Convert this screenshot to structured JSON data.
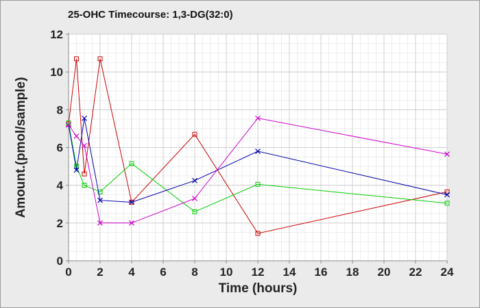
{
  "chart_data": {
    "type": "line",
    "title": "25-OHC Timecourse: 1,3-DG(32:0)",
    "xlabel": "Time (hours)",
    "ylabel": "Amount.(pmol/sample)",
    "xlim": [
      0,
      24
    ],
    "ylim": [
      0,
      12
    ],
    "xticks": [
      0,
      2,
      4,
      6,
      8,
      10,
      12,
      14,
      16,
      18,
      20,
      22,
      24
    ],
    "yticks": [
      0,
      2,
      4,
      6,
      8,
      10,
      12
    ],
    "grid": true,
    "legend": "none",
    "series": [
      {
        "color": "#cc0000",
        "marker": "square",
        "x": [
          0,
          0.5,
          1,
          2,
          4,
          8,
          12,
          24
        ],
        "y": [
          7.25,
          10.7,
          4.6,
          10.7,
          3.1,
          6.7,
          1.45,
          3.65
        ]
      },
      {
        "color": "#00cc00",
        "marker": "square",
        "x": [
          0,
          0.5,
          1,
          2,
          4,
          8,
          12,
          24
        ],
        "y": [
          7.3,
          5.0,
          4.0,
          3.65,
          5.15,
          2.6,
          4.05,
          3.05
        ]
      },
      {
        "color": "#0000aa",
        "marker": "x",
        "x": [
          0,
          0.5,
          1,
          2,
          4,
          8,
          12,
          24
        ],
        "y": [
          7.2,
          4.8,
          7.55,
          3.2,
          3.1,
          4.25,
          5.8,
          3.5
        ]
      },
      {
        "color": "#cc00cc",
        "marker": "x",
        "x": [
          0,
          0.5,
          1,
          2,
          4,
          8,
          12,
          24
        ],
        "y": [
          7.2,
          6.6,
          6.1,
          2.0,
          2.0,
          3.3,
          7.55,
          5.65
        ]
      }
    ]
  }
}
